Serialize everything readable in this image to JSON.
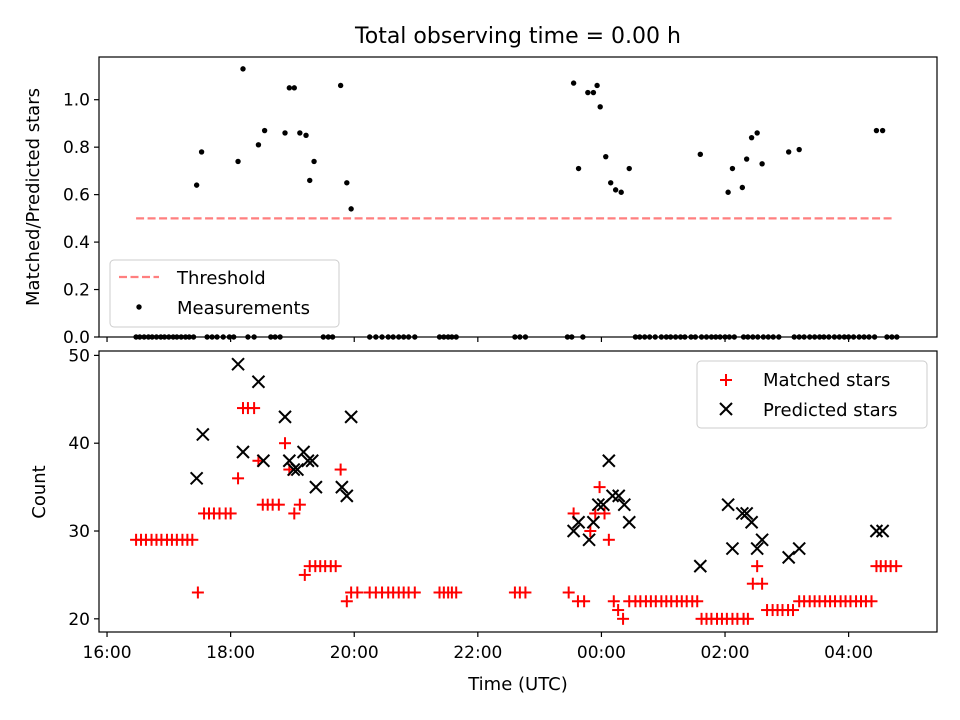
{
  "figure": {
    "title": "Total observing time = 0.00 h",
    "xlabel": "Time (UTC)"
  },
  "chart_data": [
    {
      "type": "scatter",
      "panel": "top",
      "ylabel": "Matched/Predicted stars",
      "ylim": [
        0,
        1.18
      ],
      "xlim": [
        15.87,
        29.43
      ],
      "yticks": [
        0.0,
        0.2,
        0.4,
        0.6,
        0.8,
        1.0
      ],
      "ytick_labels": [
        "0.0",
        "0.2",
        "0.4",
        "0.6",
        "0.8",
        "1.0"
      ],
      "threshold": {
        "name": "Threshold",
        "value": 0.5,
        "x_range": [
          16.47,
          28.72
        ],
        "color": "#ff7f7f"
      },
      "legend_position": "lower-left",
      "series": [
        {
          "name": "Measurements",
          "color": "#000000",
          "x": [
            17.45,
            17.53,
            18.12,
            18.2,
            18.45,
            18.55,
            18.88,
            18.95,
            19.03,
            19.12,
            19.22,
            19.28,
            19.35,
            19.78,
            19.88,
            19.95,
            23.55,
            23.63,
            23.78,
            23.87,
            23.93,
            23.98,
            24.07,
            24.15,
            24.23,
            24.32,
            24.45,
            25.6,
            26.05,
            26.12,
            26.28,
            26.35,
            26.43,
            26.52,
            26.6,
            27.03,
            27.2,
            28.45,
            28.55,
            16.47,
            16.53,
            16.6,
            16.67,
            16.73,
            16.8,
            16.87,
            16.93,
            17.0,
            17.07,
            17.13,
            17.2,
            17.27,
            17.33,
            17.4,
            17.62,
            17.7,
            17.78,
            17.88,
            17.98,
            18.05,
            18.28,
            18.38,
            18.65,
            18.72,
            18.8,
            19.5,
            19.58,
            19.65,
            20.25,
            20.35,
            20.45,
            20.55,
            20.63,
            20.72,
            20.8,
            20.88,
            20.98,
            21.38,
            21.45,
            21.52,
            21.58,
            21.65,
            22.6,
            22.68,
            22.77,
            23.45,
            23.52,
            23.7,
            24.55,
            24.62,
            24.7,
            24.78,
            24.87,
            24.97,
            25.05,
            25.12,
            25.2,
            25.28,
            25.35,
            25.45,
            25.52,
            25.62,
            25.7,
            25.78,
            25.85,
            25.92,
            26.0,
            26.07,
            26.15,
            26.3,
            26.37,
            26.45,
            26.53,
            26.62,
            26.7,
            26.78,
            26.87,
            27.12,
            27.2,
            27.28,
            27.37,
            27.45,
            27.53,
            27.6,
            27.68,
            27.77,
            27.85,
            27.93,
            28.0,
            28.08,
            28.17,
            28.25,
            28.33,
            28.42,
            28.62,
            28.7,
            28.78
          ],
          "y": [
            0.64,
            0.78,
            0.74,
            1.13,
            0.81,
            0.87,
            0.86,
            1.05,
            1.05,
            0.86,
            0.85,
            0.66,
            0.74,
            1.06,
            0.65,
            0.54,
            1.07,
            0.71,
            1.03,
            1.03,
            1.06,
            0.97,
            0.76,
            0.65,
            0.62,
            0.61,
            0.71,
            0.77,
            0.61,
            0.71,
            0.63,
            0.75,
            0.84,
            0.86,
            0.73,
            0.78,
            0.79,
            0.87,
            0.87,
            0,
            0,
            0,
            0,
            0,
            0,
            0,
            0,
            0,
            0,
            0,
            0,
            0,
            0,
            0,
            0,
            0,
            0,
            0,
            0,
            0,
            0,
            0,
            0,
            0,
            0,
            0,
            0,
            0,
            0,
            0,
            0,
            0,
            0,
            0,
            0,
            0,
            0,
            0,
            0,
            0,
            0,
            0,
            0,
            0,
            0,
            0,
            0,
            0,
            0,
            0,
            0,
            0,
            0,
            0,
            0,
            0,
            0,
            0,
            0,
            0,
            0,
            0,
            0,
            0,
            0,
            0,
            0,
            0,
            0,
            0,
            0,
            0,
            0,
            0,
            0,
            0,
            0,
            0,
            0,
            0,
            0,
            0,
            0,
            0,
            0,
            0,
            0,
            0,
            0,
            0,
            0,
            0,
            0,
            0,
            0,
            0,
            0
          ]
        }
      ]
    },
    {
      "type": "scatter",
      "panel": "bottom",
      "ylabel": "Count",
      "ylim": [
        18.5,
        50.5
      ],
      "xlim": [
        15.87,
        29.43
      ],
      "yticks": [
        20,
        30,
        40,
        50
      ],
      "ytick_labels": [
        "20",
        "30",
        "40",
        "50"
      ],
      "xticks": [
        16,
        18,
        20,
        22,
        24,
        26,
        28
      ],
      "xtick_labels": [
        "16:00",
        "18:00",
        "20:00",
        "22:00",
        "00:00",
        "02:00",
        "04:00"
      ],
      "legend_position": "upper-right",
      "series": [
        {
          "name": "Matched stars",
          "marker": "plus",
          "color": "#ff0000",
          "x": [
            16.47,
            16.55,
            16.63,
            16.72,
            16.8,
            16.88,
            16.97,
            17.05,
            17.13,
            17.22,
            17.3,
            17.38,
            17.47,
            17.57,
            17.65,
            17.73,
            17.82,
            17.92,
            18.0,
            18.12,
            18.2,
            18.28,
            18.38,
            18.45,
            18.52,
            18.6,
            18.68,
            18.78,
            18.88,
            18.95,
            19.03,
            19.12,
            19.2,
            19.28,
            19.37,
            19.45,
            19.53,
            19.62,
            19.7,
            19.78,
            19.88,
            19.95,
            20.05,
            20.25,
            20.35,
            20.45,
            20.55,
            20.63,
            20.72,
            20.8,
            20.88,
            20.98,
            21.38,
            21.45,
            21.52,
            21.58,
            21.65,
            22.6,
            22.68,
            22.77,
            23.47,
            23.55,
            23.62,
            23.72,
            23.82,
            23.9,
            23.97,
            24.05,
            24.12,
            24.2,
            24.27,
            24.35,
            24.45,
            24.55,
            24.63,
            24.72,
            24.8,
            24.88,
            24.97,
            25.05,
            25.13,
            25.22,
            25.3,
            25.38,
            25.47,
            25.55,
            25.62,
            25.7,
            25.78,
            25.87,
            25.95,
            26.03,
            26.12,
            26.2,
            26.3,
            26.37,
            26.45,
            26.52,
            26.6,
            26.68,
            26.77,
            26.85,
            26.93,
            27.02,
            27.1,
            27.2,
            27.28,
            27.37,
            27.45,
            27.53,
            27.62,
            27.7,
            27.78,
            27.87,
            27.95,
            28.03,
            28.12,
            28.2,
            28.28,
            28.37,
            28.45,
            28.52,
            28.6,
            28.68,
            28.77
          ],
          "y": [
            29,
            29,
            29,
            29,
            29,
            29,
            29,
            29,
            29,
            29,
            29,
            29,
            23,
            32,
            32,
            32,
            32,
            32,
            32,
            36,
            44,
            44,
            44,
            38,
            33,
            33,
            33,
            33,
            40,
            37,
            32,
            33,
            25,
            26,
            26,
            26,
            26,
            26,
            26,
            37,
            22,
            23,
            23,
            23,
            23,
            23,
            23,
            23,
            23,
            23,
            23,
            23,
            23,
            23,
            23,
            23,
            23,
            23,
            23,
            23,
            23,
            32,
            22,
            22,
            30,
            32,
            35,
            32,
            29,
            22,
            21,
            20,
            22,
            22,
            22,
            22,
            22,
            22,
            22,
            22,
            22,
            22,
            22,
            22,
            22,
            22,
            20,
            20,
            20,
            20,
            20,
            20,
            20,
            20,
            20,
            20,
            24,
            26,
            24,
            21,
            21,
            21,
            21,
            21,
            21,
            22,
            22,
            22,
            22,
            22,
            22,
            22,
            22,
            22,
            22,
            22,
            22,
            22,
            22,
            22,
            26,
            26,
            26,
            26,
            26
          ]
        },
        {
          "name": "Predicted stars",
          "marker": "x",
          "color": "#000000",
          "x": [
            17.45,
            17.55,
            18.12,
            18.2,
            18.45,
            18.53,
            18.88,
            18.95,
            19.02,
            19.08,
            19.18,
            19.25,
            19.32,
            19.38,
            19.8,
            19.88,
            19.95,
            23.55,
            23.63,
            23.8,
            23.87,
            23.95,
            24.03,
            24.12,
            24.18,
            24.28,
            24.37,
            24.45,
            25.6,
            26.05,
            26.12,
            26.28,
            26.35,
            26.43,
            26.52,
            26.6,
            27.03,
            27.2,
            28.45,
            28.55
          ],
          "y": [
            36,
            41,
            49,
            39,
            47,
            38,
            43,
            38,
            37,
            37,
            39,
            38,
            38,
            35,
            35,
            34,
            43,
            30,
            31,
            29,
            31,
            33,
            33,
            38,
            34,
            34,
            33,
            31,
            26,
            33,
            28,
            32,
            32,
            31,
            28,
            29,
            27,
            28,
            30,
            30
          ]
        }
      ]
    }
  ]
}
